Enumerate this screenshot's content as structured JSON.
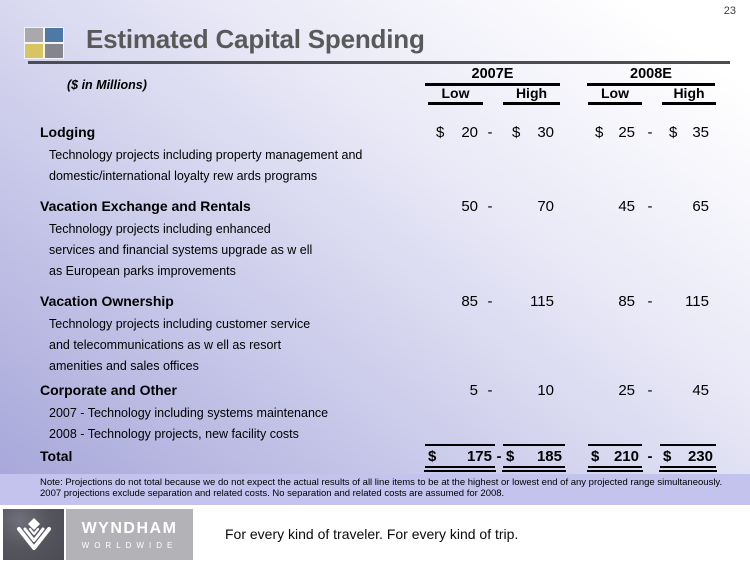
{
  "page_number": "23",
  "title": "Estimated Capital Spending",
  "units_label": "($ in Millions)",
  "table": {
    "year_groups": [
      {
        "label": "2007E",
        "sub_columns": [
          "Low",
          "High"
        ]
      },
      {
        "label": "2008E",
        "sub_columns": [
          "Low",
          "High"
        ]
      }
    ],
    "range_separator": "-",
    "rows": [
      {
        "label": "Lodging",
        "description": [
          "Technology projects including property management and",
          "domestic/international loyalty rew ards programs"
        ],
        "y2007": {
          "low_currency": "$",
          "low": "20",
          "high_currency": "$",
          "high": "30"
        },
        "y2008": {
          "low_currency": "$",
          "low": "25",
          "high_currency": "$",
          "high": "35"
        }
      },
      {
        "label": "Vacation Exchange and Rentals",
        "description": [
          "Technology projects including enhanced",
          "services and financial systems upgrade as w ell",
          "as European parks improvements"
        ],
        "y2007": {
          "low_currency": "",
          "low": "50",
          "high_currency": "",
          "high": "70"
        },
        "y2008": {
          "low_currency": "",
          "low": "45",
          "high_currency": "",
          "high": "65"
        }
      },
      {
        "label": "Vacation Ownership",
        "description": [
          "Technology projects including customer service",
          "and telecommunications as w ell as resort",
          "amenities and sales offices"
        ],
        "y2007": {
          "low_currency": "",
          "low": "85",
          "high_currency": "",
          "high": "115"
        },
        "y2008": {
          "low_currency": "",
          "low": "85",
          "high_currency": "",
          "high": "115"
        }
      },
      {
        "label": "Corporate and Other",
        "description": [
          "2007 - Technology including systems maintenance",
          "2008 - Technology projects, new facility costs"
        ],
        "y2007": {
          "low_currency": "",
          "low": "5",
          "high_currency": "",
          "high": "10"
        },
        "y2008": {
          "low_currency": "",
          "low": "25",
          "high_currency": "",
          "high": "45"
        }
      }
    ],
    "total": {
      "label": "Total",
      "y2007": {
        "low_currency": "$",
        "low": "175",
        "high_currency": "$",
        "high": "185"
      },
      "y2008": {
        "low_currency": "$",
        "low": "210",
        "high_currency": "$",
        "high": "230"
      }
    }
  },
  "notes": [
    "Note: Projections do not total because we do not expect the actual results of all line items to be at the highest or lowest end of any projected range simultaneously.",
    "2007 projections exclude separation and related costs. No separation and related costs are assumed for 2008."
  ],
  "footer": {
    "brand": "WYNDHAM",
    "brand_sub": "WORLDWIDE",
    "tagline": "For every kind of traveler. For every kind of trip."
  },
  "colors": {
    "logo_gray": "#a9a9ad",
    "logo_blue": "#4f79a4",
    "logo_gold": "#d8c463",
    "logo_darkgray": "#85858d",
    "note_band": "#c3c3ee",
    "title_text": "#595959"
  }
}
